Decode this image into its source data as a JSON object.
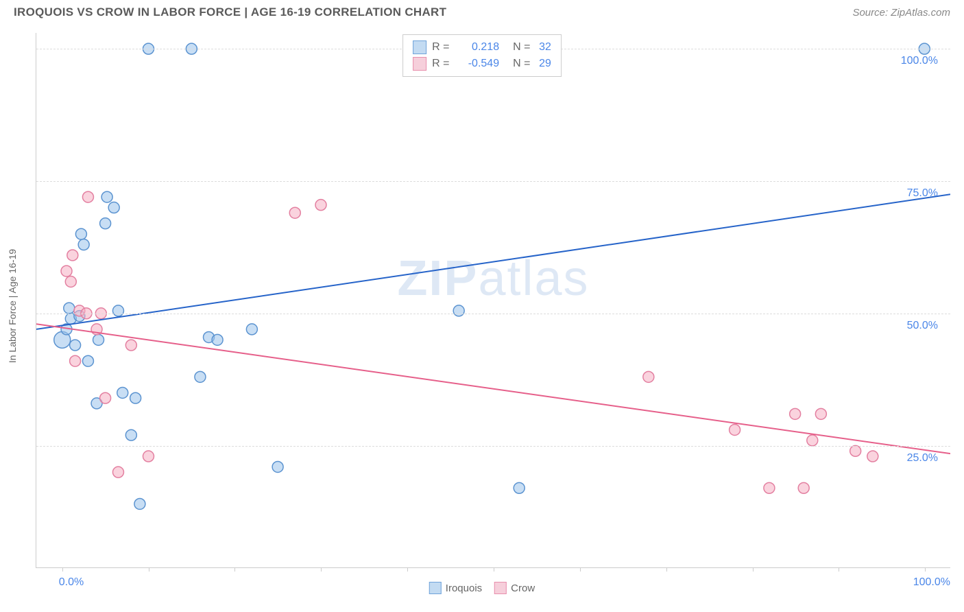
{
  "title": "IROQUOIS VS CROW IN LABOR FORCE | AGE 16-19 CORRELATION CHART",
  "source": "Source: ZipAtlas.com",
  "watermark_prefix": "ZIP",
  "watermark_suffix": "atlas",
  "ylabel": "In Labor Force | Age 16-19",
  "chart": {
    "type": "scatter",
    "xlim": [
      -3,
      103
    ],
    "ylim": [
      2,
      103
    ],
    "x_ticks": [
      0,
      10,
      20,
      30,
      40,
      50,
      60,
      70,
      80,
      90,
      100
    ],
    "y_gridlines": [
      25,
      50,
      75,
      100
    ],
    "y_tick_labels": [
      "25.0%",
      "50.0%",
      "75.0%",
      "100.0%"
    ],
    "x_left_label": "0.0%",
    "x_right_label": "100.0%",
    "background_color": "#ffffff",
    "grid_color": "#dcdcdc",
    "axis_color": "#cccccc",
    "tick_label_color": "#4a86e8",
    "point_radius": 8
  },
  "series": [
    {
      "name": "Iroquois",
      "fill": "rgba(155, 195, 235, 0.55)",
      "stroke": "#5b93d0",
      "line_color": "#2563c9",
      "line_width": 2,
      "R": "0.218",
      "N": "32",
      "trend": {
        "x1": -3,
        "y1": 47,
        "x2": 103,
        "y2": 72.5
      },
      "points": [
        {
          "x": 0,
          "y": 45,
          "r": 12
        },
        {
          "x": 0.5,
          "y": 47
        },
        {
          "x": 1,
          "y": 49
        },
        {
          "x": 0.8,
          "y": 51
        },
        {
          "x": 1.5,
          "y": 44
        },
        {
          "x": 2,
          "y": 49.5
        },
        {
          "x": 2.2,
          "y": 65
        },
        {
          "x": 2.5,
          "y": 63
        },
        {
          "x": 3,
          "y": 41
        },
        {
          "x": 4,
          "y": 33
        },
        {
          "x": 4.2,
          "y": 45
        },
        {
          "x": 5,
          "y": 67
        },
        {
          "x": 5.2,
          "y": 72
        },
        {
          "x": 6,
          "y": 70
        },
        {
          "x": 6.5,
          "y": 50.5
        },
        {
          "x": 7,
          "y": 35
        },
        {
          "x": 8,
          "y": 27
        },
        {
          "x": 8.5,
          "y": 34
        },
        {
          "x": 9,
          "y": 14
        },
        {
          "x": 10,
          "y": 100
        },
        {
          "x": 15,
          "y": 100
        },
        {
          "x": 16,
          "y": 38
        },
        {
          "x": 17,
          "y": 45.5
        },
        {
          "x": 18,
          "y": 45
        },
        {
          "x": 22,
          "y": 47
        },
        {
          "x": 25,
          "y": 21
        },
        {
          "x": 46,
          "y": 50.5
        },
        {
          "x": 53,
          "y": 17
        },
        {
          "x": 100,
          "y": 100
        }
      ]
    },
    {
      "name": "Crow",
      "fill": "rgba(245, 175, 195, 0.55)",
      "stroke": "#e37fa0",
      "line_color": "#e65f8a",
      "line_width": 2,
      "R": "-0.549",
      "N": "29",
      "trend": {
        "x1": -3,
        "y1": 48,
        "x2": 103,
        "y2": 23.5
      },
      "points": [
        {
          "x": 0.5,
          "y": 58
        },
        {
          "x": 1,
          "y": 56
        },
        {
          "x": 1.2,
          "y": 61
        },
        {
          "x": 1.5,
          "y": 41
        },
        {
          "x": 2,
          "y": 50.5
        },
        {
          "x": 2.8,
          "y": 50
        },
        {
          "x": 3,
          "y": 72
        },
        {
          "x": 4,
          "y": 47
        },
        {
          "x": 4.5,
          "y": 50
        },
        {
          "x": 5,
          "y": 34
        },
        {
          "x": 6.5,
          "y": 20
        },
        {
          "x": 8,
          "y": 44
        },
        {
          "x": 10,
          "y": 23
        },
        {
          "x": 27,
          "y": 69
        },
        {
          "x": 30,
          "y": 70.5
        },
        {
          "x": 68,
          "y": 38
        },
        {
          "x": 78,
          "y": 28
        },
        {
          "x": 82,
          "y": 17
        },
        {
          "x": 85,
          "y": 31
        },
        {
          "x": 86,
          "y": 17
        },
        {
          "x": 87,
          "y": 26
        },
        {
          "x": 88,
          "y": 31
        },
        {
          "x": 92,
          "y": 24
        },
        {
          "x": 94,
          "y": 23
        }
      ]
    }
  ],
  "legend_swatches": {
    "blue_fill": "#c3dbf2",
    "blue_border": "#6fa3da",
    "pink_fill": "#f6cfdb",
    "pink_border": "#e88fad"
  }
}
